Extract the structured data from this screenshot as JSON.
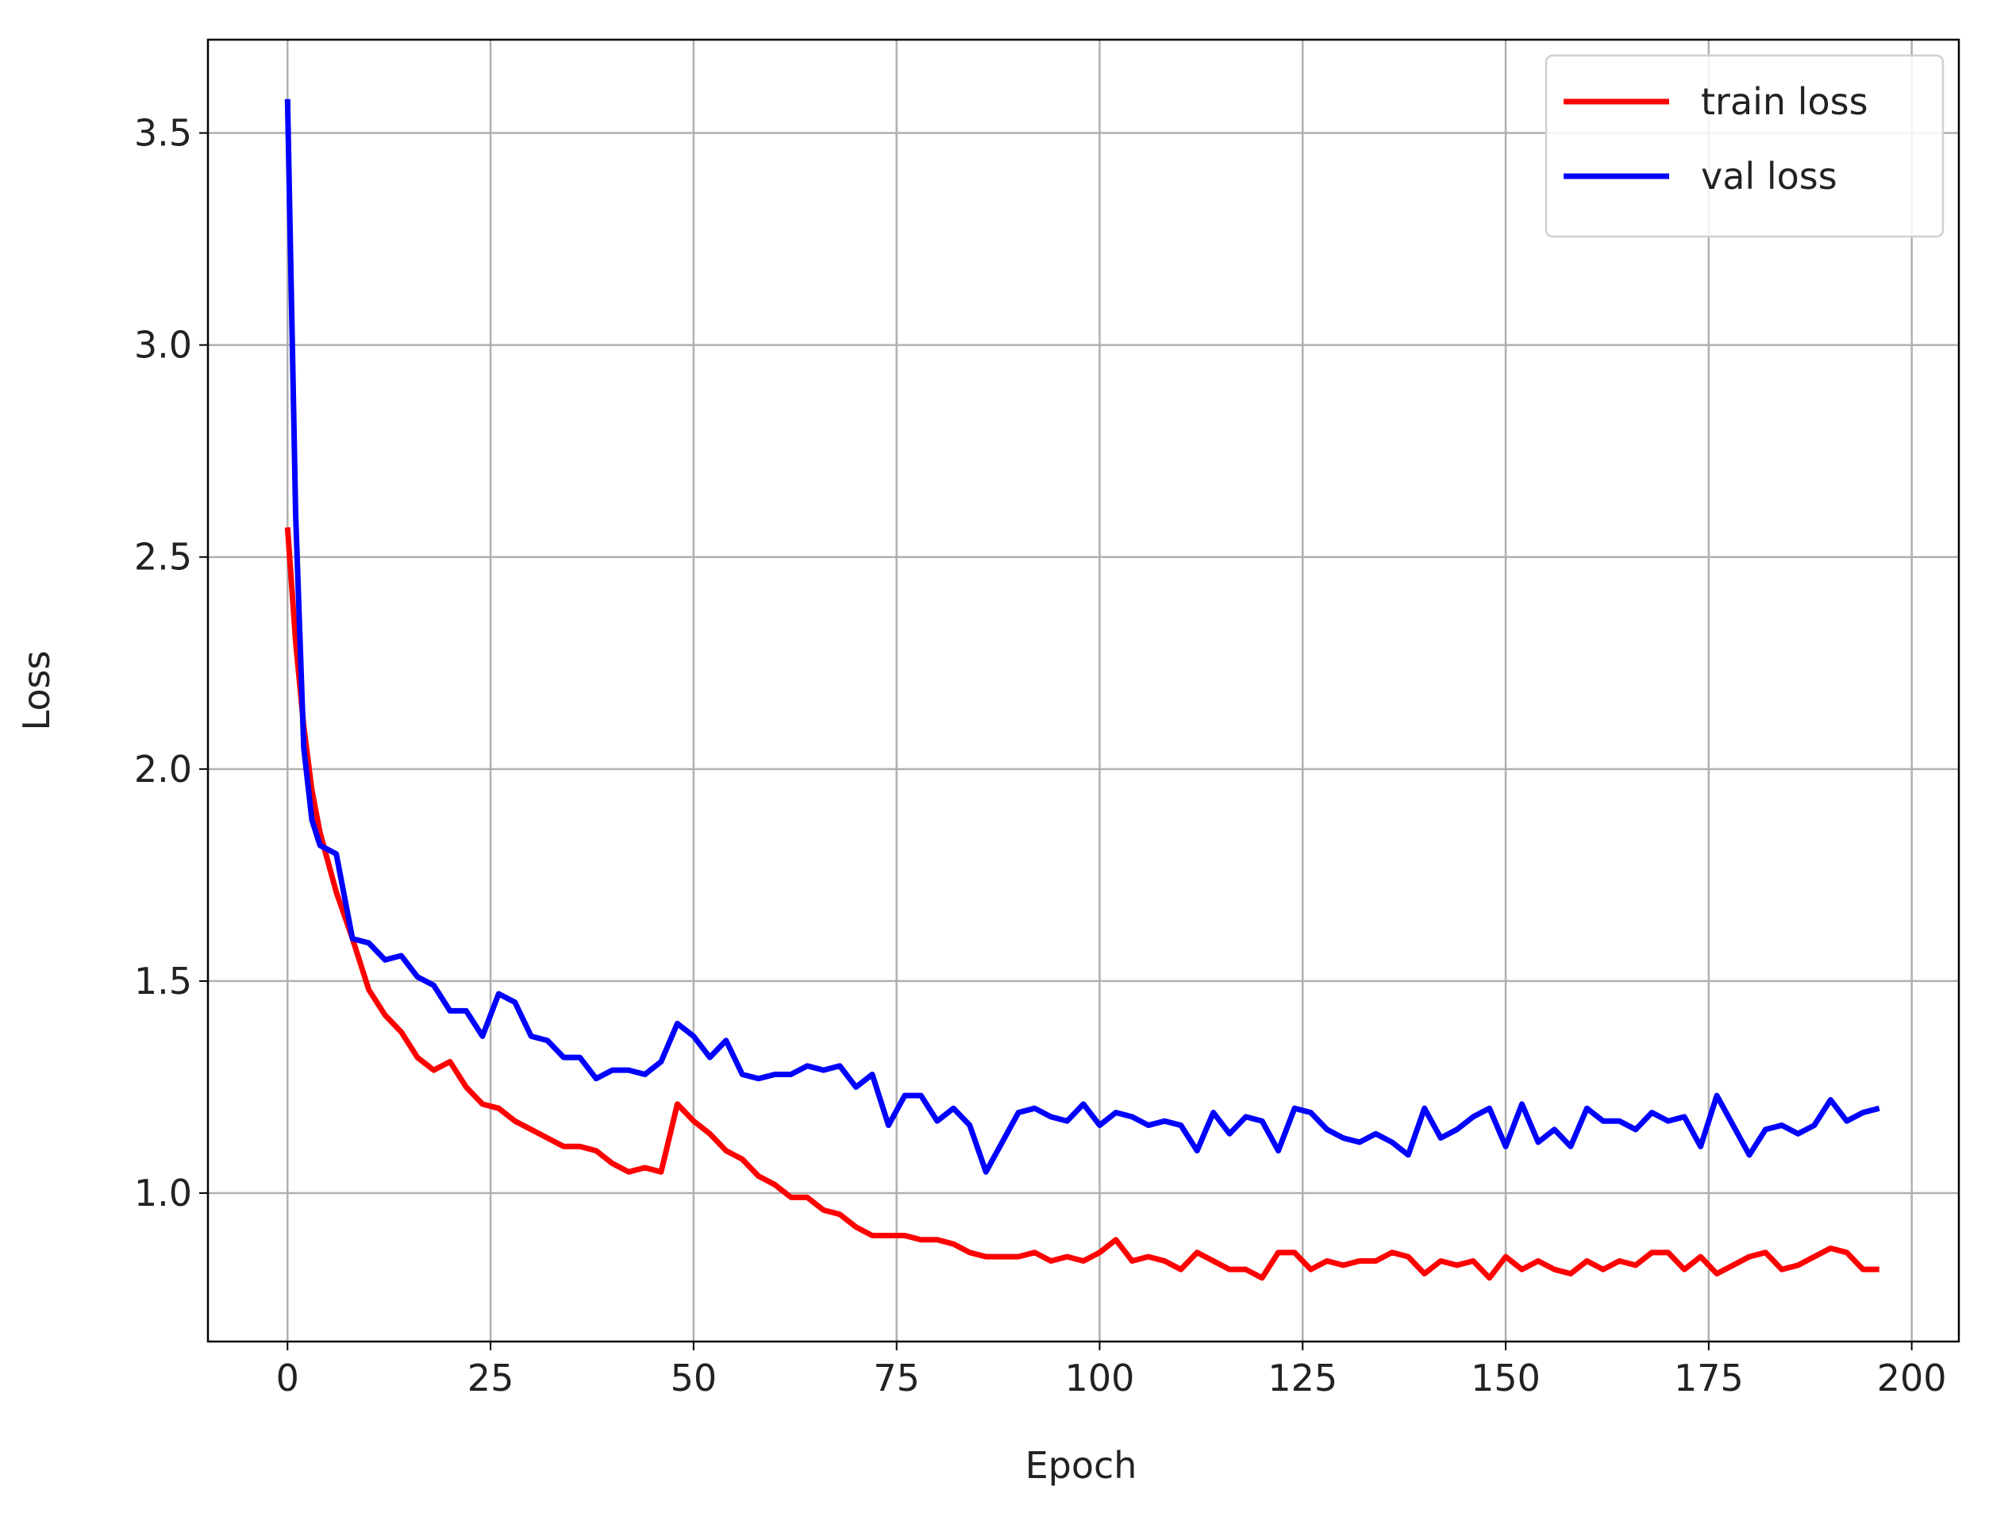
{
  "chart_data": {
    "type": "line",
    "x_label": "Epoch",
    "y_label": "Loss",
    "x": [
      0,
      1,
      2,
      3,
      4,
      5,
      6,
      8,
      10,
      12,
      14,
      16,
      18,
      20,
      22,
      24,
      26,
      28,
      30,
      32,
      34,
      36,
      38,
      40,
      42,
      44,
      46,
      48,
      50,
      52,
      54,
      56,
      58,
      60,
      62,
      64,
      66,
      68,
      70,
      72,
      74,
      76,
      78,
      80,
      82,
      84,
      86,
      88,
      90,
      92,
      94,
      96,
      98,
      100,
      102,
      104,
      106,
      108,
      110,
      112,
      114,
      116,
      118,
      120,
      122,
      124,
      126,
      128,
      130,
      132,
      134,
      136,
      138,
      140,
      142,
      144,
      146,
      148,
      150,
      152,
      154,
      156,
      158,
      160,
      162,
      164,
      166,
      168,
      170,
      172,
      174,
      176,
      178,
      180,
      182,
      184,
      186,
      188,
      190,
      192,
      194,
      196
    ],
    "series": [
      {
        "name": "train loss",
        "color": "#ff0000",
        "values": [
          2.57,
          2.3,
          2.1,
          1.95,
          1.85,
          1.78,
          1.71,
          1.6,
          1.48,
          1.42,
          1.38,
          1.32,
          1.29,
          1.31,
          1.25,
          1.21,
          1.2,
          1.17,
          1.15,
          1.13,
          1.11,
          1.11,
          1.1,
          1.07,
          1.05,
          1.06,
          1.05,
          1.21,
          1.17,
          1.14,
          1.1,
          1.08,
          1.04,
          1.02,
          0.99,
          0.99,
          0.96,
          0.95,
          0.92,
          0.9,
          0.9,
          0.9,
          0.89,
          0.89,
          0.88,
          0.86,
          0.85,
          0.85,
          0.85,
          0.86,
          0.84,
          0.85,
          0.84,
          0.86,
          0.89,
          0.84,
          0.85,
          0.84,
          0.82,
          0.86,
          0.84,
          0.82,
          0.82,
          0.8,
          0.86,
          0.86,
          0.82,
          0.84,
          0.83,
          0.84,
          0.84,
          0.86,
          0.85,
          0.81,
          0.84,
          0.83,
          0.84,
          0.8,
          0.85,
          0.82,
          0.84,
          0.82,
          0.81,
          0.84,
          0.82,
          0.84,
          0.83,
          0.86,
          0.86,
          0.82,
          0.85,
          0.81,
          0.83,
          0.85,
          0.86,
          0.82,
          0.83,
          0.85,
          0.87,
          0.86,
          0.82,
          0.82
        ]
      },
      {
        "name": "val loss",
        "color": "#0000ff",
        "values": [
          3.58,
          2.6,
          2.05,
          1.88,
          1.82,
          1.81,
          1.8,
          1.6,
          1.59,
          1.55,
          1.56,
          1.51,
          1.49,
          1.43,
          1.43,
          1.37,
          1.47,
          1.45,
          1.37,
          1.36,
          1.32,
          1.32,
          1.27,
          1.29,
          1.29,
          1.28,
          1.31,
          1.4,
          1.37,
          1.32,
          1.36,
          1.28,
          1.27,
          1.28,
          1.28,
          1.3,
          1.29,
          1.3,
          1.25,
          1.28,
          1.16,
          1.23,
          1.23,
          1.17,
          1.2,
          1.16,
          1.05,
          1.12,
          1.19,
          1.2,
          1.18,
          1.17,
          1.21,
          1.16,
          1.19,
          1.18,
          1.16,
          1.17,
          1.16,
          1.1,
          1.19,
          1.14,
          1.18,
          1.17,
          1.1,
          1.2,
          1.19,
          1.15,
          1.13,
          1.12,
          1.14,
          1.12,
          1.09,
          1.2,
          1.13,
          1.15,
          1.18,
          1.2,
          1.11,
          1.21,
          1.12,
          1.15,
          1.11,
          1.2,
          1.17,
          1.17,
          1.15,
          1.19,
          1.17,
          1.18,
          1.11,
          1.23,
          1.16,
          1.09,
          1.15,
          1.16,
          1.14,
          1.16,
          1.22,
          1.17,
          1.19,
          1.2
        ]
      }
    ],
    "xlim": [
      -9.8,
      205.8
    ],
    "ylim": [
      0.65,
      3.72
    ],
    "xticks": [
      0,
      25,
      50,
      75,
      100,
      125,
      150,
      175,
      200
    ],
    "yticks": [
      {
        "value": 1.0,
        "label": "1.0"
      },
      {
        "value": 1.5,
        "label": "1.5"
      },
      {
        "value": 2.0,
        "label": "2.0"
      },
      {
        "value": 2.5,
        "label": "2.5"
      },
      {
        "value": 3.0,
        "label": "3.0"
      },
      {
        "value": 3.5,
        "label": "3.5"
      }
    ],
    "grid": true,
    "legend": "upper right"
  }
}
